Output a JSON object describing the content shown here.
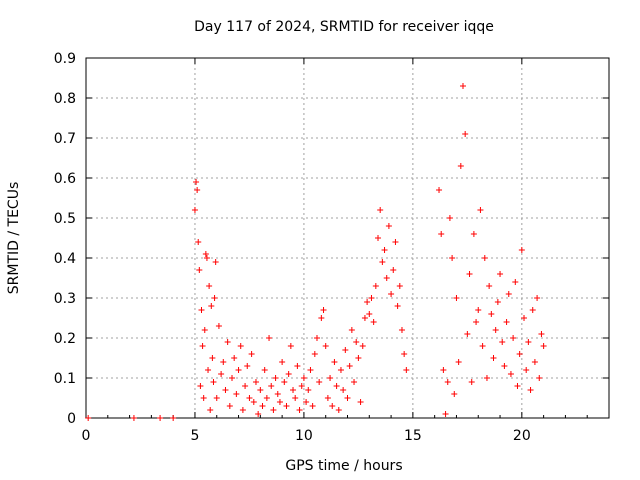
{
  "chart_data": {
    "type": "scatter",
    "title": "Day 117 of 2024, SRMTID for receiver iqqe",
    "xlabel": "GPS time / hours",
    "ylabel": "SRMTID / TECUs",
    "xlim": [
      0,
      24
    ],
    "ylim": [
      0,
      0.9
    ],
    "xticks": [
      "0",
      "5",
      "10",
      "15",
      "20"
    ],
    "yticks": [
      "0",
      "0.1",
      "0.2",
      "0.3",
      "0.4",
      "0.5",
      "0.6",
      "0.7",
      "0.8",
      "0.9"
    ],
    "grid": true,
    "marker": "+",
    "color": "#ff0000",
    "series": [
      {
        "name": "SRMTID",
        "x": [
          0.1,
          2.2,
          3.4,
          4.0,
          5.0,
          5.05,
          5.1,
          5.15,
          5.2,
          5.25,
          5.3,
          5.35,
          5.4,
          5.45,
          5.5,
          5.55,
          5.6,
          5.65,
          5.7,
          5.75,
          5.8,
          5.85,
          5.9,
          5.95,
          6.0,
          6.1,
          6.2,
          6.3,
          6.4,
          6.5,
          6.6,
          6.7,
          6.8,
          6.9,
          7.0,
          7.1,
          7.2,
          7.3,
          7.4,
          7.5,
          7.6,
          7.7,
          7.8,
          7.9,
          8.0,
          8.1,
          8.2,
          8.3,
          8.4,
          8.5,
          8.6,
          8.7,
          8.8,
          8.9,
          9.0,
          9.1,
          9.2,
          9.3,
          9.4,
          9.5,
          9.6,
          9.7,
          9.8,
          9.9,
          10.0,
          10.1,
          10.2,
          10.3,
          10.4,
          10.5,
          10.6,
          10.7,
          10.8,
          10.9,
          11.0,
          11.1,
          11.2,
          11.3,
          11.4,
          11.5,
          11.6,
          11.7,
          11.8,
          11.9,
          12.0,
          12.1,
          12.2,
          12.3,
          12.4,
          12.5,
          12.6,
          12.7,
          12.8,
          12.9,
          13.0,
          13.1,
          13.2,
          13.3,
          13.4,
          13.5,
          13.6,
          13.7,
          13.8,
          13.9,
          14.0,
          14.1,
          14.2,
          14.3,
          14.4,
          14.5,
          14.6,
          14.7,
          16.2,
          16.3,
          16.4,
          16.5,
          16.6,
          16.7,
          16.8,
          16.9,
          17.0,
          17.1,
          17.2,
          17.3,
          17.4,
          17.5,
          17.6,
          17.7,
          17.8,
          17.9,
          18.0,
          18.1,
          18.2,
          18.3,
          18.4,
          18.5,
          18.6,
          18.7,
          18.8,
          18.9,
          19.0,
          19.1,
          19.2,
          19.3,
          19.4,
          19.5,
          19.6,
          19.7,
          19.8,
          19.9,
          20.0,
          20.1,
          20.2,
          20.3,
          20.4,
          20.5,
          20.6,
          20.7,
          20.8,
          20.9,
          21.0
        ],
        "y": [
          0.0,
          0.0,
          0.0,
          0.0,
          0.52,
          0.59,
          0.57,
          0.44,
          0.37,
          0.08,
          0.27,
          0.18,
          0.05,
          0.22,
          0.41,
          0.4,
          0.12,
          0.33,
          0.02,
          0.28,
          0.15,
          0.09,
          0.3,
          0.39,
          0.05,
          0.23,
          0.11,
          0.14,
          0.07,
          0.19,
          0.03,
          0.1,
          0.15,
          0.06,
          0.12,
          0.18,
          0.02,
          0.08,
          0.13,
          0.05,
          0.16,
          0.04,
          0.09,
          0.01,
          0.07,
          0.03,
          0.12,
          0.05,
          0.2,
          0.08,
          0.02,
          0.1,
          0.06,
          0.04,
          0.14,
          0.09,
          0.03,
          0.11,
          0.18,
          0.07,
          0.05,
          0.13,
          0.02,
          0.08,
          0.1,
          0.04,
          0.07,
          0.12,
          0.03,
          0.16,
          0.2,
          0.09,
          0.25,
          0.27,
          0.18,
          0.05,
          0.1,
          0.03,
          0.14,
          0.08,
          0.02,
          0.12,
          0.07,
          0.17,
          0.05,
          0.13,
          0.22,
          0.09,
          0.19,
          0.15,
          0.04,
          0.18,
          0.25,
          0.29,
          0.26,
          0.3,
          0.24,
          0.33,
          0.45,
          0.52,
          0.39,
          0.42,
          0.35,
          0.48,
          0.31,
          0.37,
          0.44,
          0.28,
          0.33,
          0.22,
          0.16,
          0.12,
          0.57,
          0.46,
          0.12,
          0.01,
          0.09,
          0.5,
          0.4,
          0.06,
          0.3,
          0.14,
          0.63,
          0.83,
          0.71,
          0.21,
          0.36,
          0.09,
          0.46,
          0.24,
          0.27,
          0.52,
          0.18,
          0.4,
          0.1,
          0.33,
          0.26,
          0.15,
          0.22,
          0.29,
          0.36,
          0.19,
          0.13,
          0.24,
          0.31,
          0.11,
          0.2,
          0.34,
          0.08,
          0.16,
          0.42,
          0.25,
          0.12,
          0.19,
          0.07,
          0.27,
          0.14,
          0.3,
          0.1,
          0.21,
          0.18
        ]
      }
    ]
  }
}
